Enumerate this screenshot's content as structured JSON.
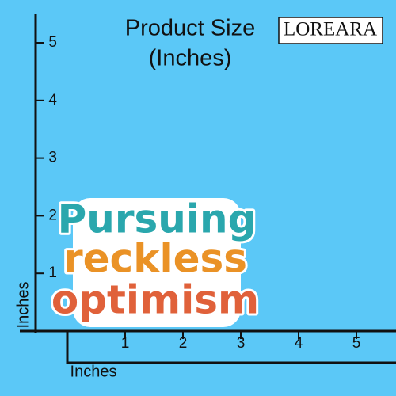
{
  "header": {
    "title_lines": [
      "Product Size",
      "(Inches)"
    ],
    "brand": "LOREARA"
  },
  "axes": {
    "y_label": "Inches",
    "x_label": "Inches",
    "y_ticks": [
      1,
      2,
      3,
      4,
      5
    ],
    "x_ticks": [
      1,
      2,
      3,
      4,
      5
    ]
  },
  "product": {
    "lines": [
      "Pursuing",
      "reckless",
      "optimism"
    ]
  }
}
